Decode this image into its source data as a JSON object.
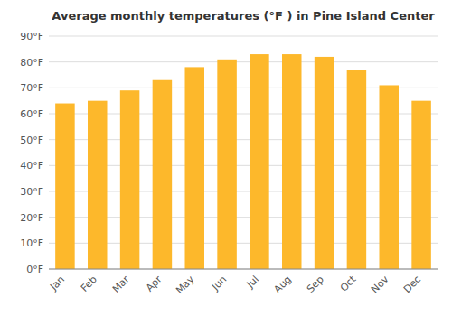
{
  "chart_data": {
    "type": "bar",
    "title": "Average monthly temperatures (°F ) in Pine Island Center",
    "categories": [
      "Jan",
      "Feb",
      "Mar",
      "Apr",
      "May",
      "Jun",
      "Jul",
      "Aug",
      "Sep",
      "Oct",
      "Nov",
      "Dec"
    ],
    "values": [
      64,
      65,
      69,
      73,
      78,
      81,
      83,
      83,
      82,
      77,
      71,
      65
    ],
    "color": "#FDB82B",
    "ylim": [
      0,
      90
    ],
    "yticks": [
      {
        "value": 0,
        "label": "0°F"
      },
      {
        "value": 10,
        "label": "10°F"
      },
      {
        "value": 20,
        "label": "20°F"
      },
      {
        "value": 30,
        "label": "30°F"
      },
      {
        "value": 40,
        "label": "40°F"
      },
      {
        "value": 50,
        "label": "50°F"
      },
      {
        "value": 60,
        "label": "60°F"
      },
      {
        "value": 70,
        "label": "70°F"
      },
      {
        "value": 80,
        "label": "80°F"
      },
      {
        "value": 90,
        "label": "90°F"
      }
    ],
    "grid": true
  }
}
